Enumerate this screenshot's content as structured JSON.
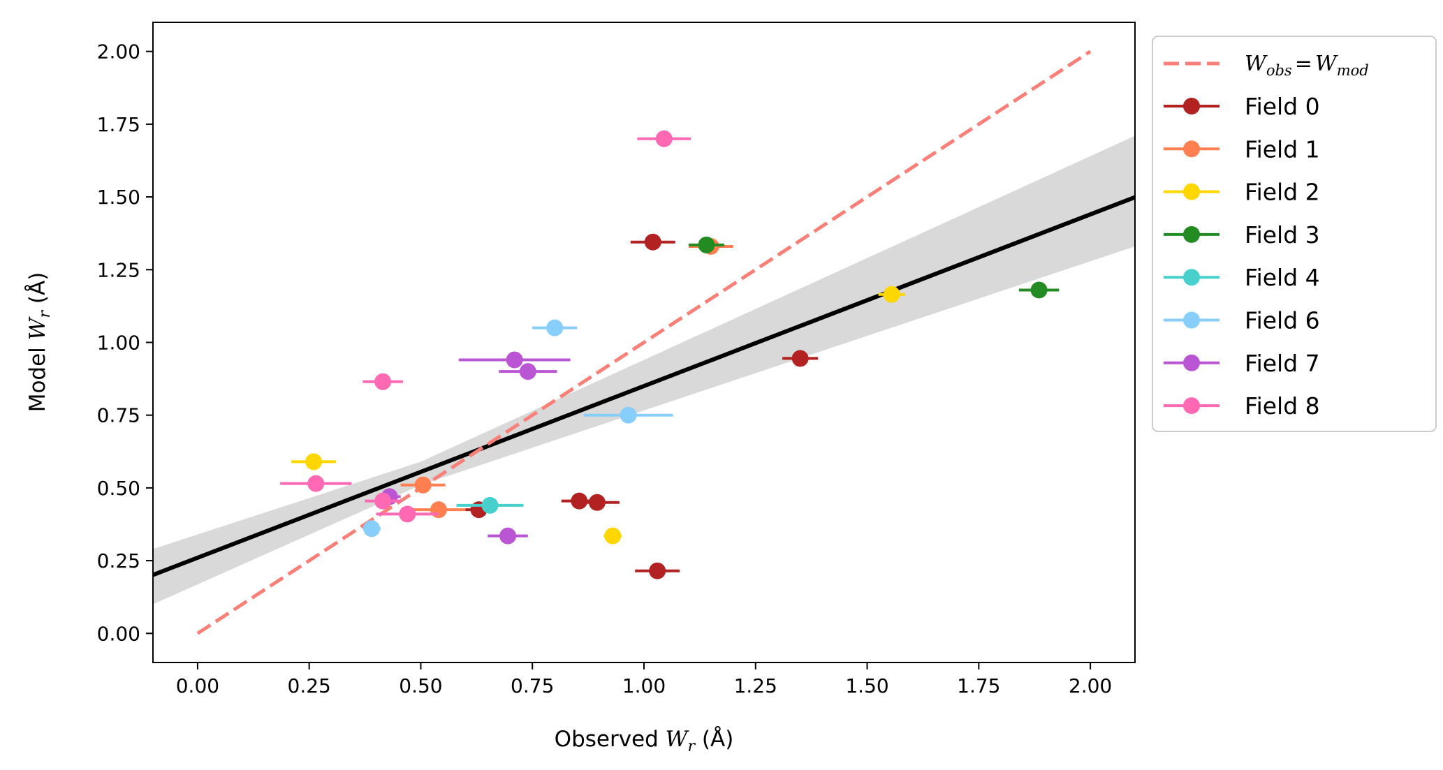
{
  "chart_data": {
    "type": "scatter",
    "title": "",
    "xlabel": "Observed W_r (Å)",
    "ylabel": "Model W_r (Å)",
    "xlabel_parts": {
      "prefix": "Observed ",
      "var": "W",
      "sub": "r",
      "unit": " (Å)"
    },
    "ylabel_parts": {
      "prefix": "Model ",
      "var": "W",
      "sub": "r",
      "unit": " (Å)"
    },
    "xlim": [
      -0.1,
      2.1
    ],
    "ylim": [
      -0.1,
      2.1
    ],
    "xticks": [
      "0.00",
      "0.25",
      "0.50",
      "0.75",
      "1.00",
      "1.25",
      "1.50",
      "1.75",
      "2.00"
    ],
    "yticks": [
      "0.00",
      "0.25",
      "0.50",
      "0.75",
      "1.00",
      "1.25",
      "1.50",
      "1.75",
      "2.00"
    ],
    "grid": false,
    "legend_position": "outside upper right",
    "one_to_one_line": {
      "label": "W_obs = W_mod",
      "label_parts": {
        "lhs": "W",
        "lhs_sub": "obs",
        "eq": "=",
        "rhs": "W",
        "rhs_sub": "mod"
      },
      "x": [
        0.0,
        2.0
      ],
      "y": [
        0.0,
        2.0
      ],
      "color": "#f88078",
      "style": "dashed"
    },
    "fit_line": {
      "intercept": 0.26,
      "slope": 0.59,
      "color": "#000000",
      "band_lower": [
        [
          -0.1,
          0.1
        ],
        [
          0.5,
          0.51
        ],
        [
          2.1,
          1.33
        ]
      ],
      "band_upper": [
        [
          -0.1,
          0.29
        ],
        [
          0.5,
          0.59
        ],
        [
          2.1,
          1.71
        ]
      ],
      "band_color": "#d9d9d9"
    },
    "series": [
      {
        "name": "Field 0",
        "color": "#b22222",
        "points": [
          {
            "x": 1.02,
            "y": 1.345,
            "xerr": 0.05
          },
          {
            "x": 1.35,
            "y": 0.945,
            "xerr": 0.04
          },
          {
            "x": 0.63,
            "y": 0.425,
            "xerr": 0.03
          },
          {
            "x": 0.855,
            "y": 0.455,
            "xerr": 0.04
          },
          {
            "x": 0.895,
            "y": 0.45,
            "xerr": 0.05
          },
          {
            "x": 1.03,
            "y": 0.215,
            "xerr": 0.05
          }
        ]
      },
      {
        "name": "Field 1",
        "color": "#ff7f50",
        "points": [
          {
            "x": 1.15,
            "y": 1.33,
            "xerr": 0.05
          },
          {
            "x": 0.505,
            "y": 0.51,
            "xerr": 0.05
          },
          {
            "x": 0.54,
            "y": 0.425,
            "xerr": 0.06
          }
        ]
      },
      {
        "name": "Field 2",
        "color": "#ffd700",
        "points": [
          {
            "x": 0.26,
            "y": 0.59,
            "xerr": 0.05
          },
          {
            "x": 1.555,
            "y": 1.165,
            "xerr": 0.03
          },
          {
            "x": 0.93,
            "y": 0.335,
            "xerr": 0.02
          }
        ]
      },
      {
        "name": "Field 3",
        "color": "#228b22",
        "points": [
          {
            "x": 1.14,
            "y": 1.335,
            "xerr": 0.04
          },
          {
            "x": 1.885,
            "y": 1.18,
            "xerr": 0.045
          }
        ]
      },
      {
        "name": "Field 4",
        "color": "#48d1cc",
        "points": [
          {
            "x": 0.655,
            "y": 0.44,
            "xerr": 0.075
          }
        ]
      },
      {
        "name": "Field 6",
        "color": "#87cefa",
        "points": [
          {
            "x": 0.8,
            "y": 1.05,
            "xerr": 0.05
          },
          {
            "x": 0.965,
            "y": 0.75,
            "xerr": 0.1
          },
          {
            "x": 0.39,
            "y": 0.36,
            "xerr": 0.02
          }
        ]
      },
      {
        "name": "Field 7",
        "color": "#ba55d3",
        "points": [
          {
            "x": 0.71,
            "y": 0.94,
            "xerr": 0.125
          },
          {
            "x": 0.74,
            "y": 0.9,
            "xerr": 0.065
          },
          {
            "x": 0.43,
            "y": 0.47,
            "xerr": 0.025
          },
          {
            "x": 0.695,
            "y": 0.335,
            "xerr": 0.045
          }
        ]
      },
      {
        "name": "Field 8",
        "color": "#ff69b4",
        "points": [
          {
            "x": 1.045,
            "y": 1.7,
            "xerr": 0.06
          },
          {
            "x": 0.415,
            "y": 0.865,
            "xerr": 0.045
          },
          {
            "x": 0.265,
            "y": 0.515,
            "xerr": 0.08
          },
          {
            "x": 0.415,
            "y": 0.455,
            "xerr": 0.04
          },
          {
            "x": 0.47,
            "y": 0.41,
            "xerr": 0.07
          }
        ]
      }
    ]
  }
}
